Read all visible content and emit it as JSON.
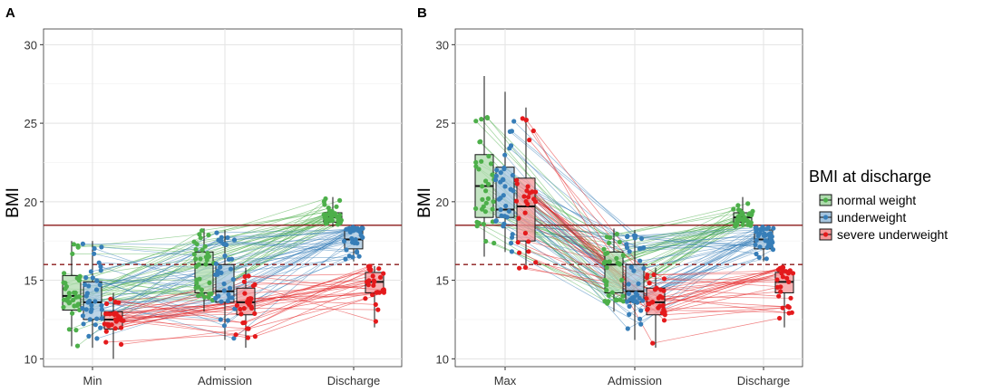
{
  "colors": {
    "normal weight": "#4daf4a",
    "underweight": "#377eb8",
    "severe underweight": "#e41a1c",
    "solid_line": "#8b1a1a",
    "dashed_line": "#8b1a1a"
  },
  "chart_data": [
    {
      "panel": "A",
      "type": "box",
      "title": "",
      "xlabel": "",
      "ylabel": "BMI",
      "ylim": [
        9.5,
        31
      ],
      "yticks": [
        10,
        15,
        20,
        25,
        30
      ],
      "categories": [
        "Min",
        "Admission",
        "Discharge"
      ],
      "reference_lines": [
        {
          "y": 18.5,
          "style": "solid"
        },
        {
          "y": 16,
          "style": "dashed"
        }
      ],
      "series": [
        {
          "name": "normal weight",
          "boxes": [
            {
              "category": "Min",
              "min": 10.8,
              "q1": 13.1,
              "median": 14.0,
              "q3": 15.3,
              "max": 17.5
            },
            {
              "category": "Admission",
              "min": 13.0,
              "q1": 14.2,
              "median": 16.0,
              "q3": 16.8,
              "max": 18.3
            },
            {
              "category": "Discharge",
              "min": 18.4,
              "q1": 18.7,
              "median": 19.0,
              "q3": 19.3,
              "max": 20.3
            }
          ]
        },
        {
          "name": "underweight",
          "boxes": [
            {
              "category": "Min",
              "min": 10.7,
              "q1": 12.5,
              "median": 13.6,
              "q3": 14.9,
              "max": 17.5
            },
            {
              "category": "Admission",
              "min": 11.2,
              "q1": 13.6,
              "median": 14.3,
              "q3": 16.0,
              "max": 18.2
            },
            {
              "category": "Discharge",
              "min": 16.2,
              "q1": 17.0,
              "median": 17.6,
              "q3": 18.2,
              "max": 18.4
            }
          ]
        },
        {
          "name": "severe underweight",
          "boxes": [
            {
              "category": "Min",
              "min": 10.0,
              "q1": 11.9,
              "median": 12.5,
              "q3": 13.0,
              "max": 14.2
            },
            {
              "category": "Admission",
              "min": 10.7,
              "q1": 12.8,
              "median": 13.6,
              "q3": 14.5,
              "max": 15.8
            },
            {
              "category": "Discharge",
              "min": 12.0,
              "q1": 14.2,
              "median": 14.9,
              "q3": 15.5,
              "max": 15.9
            }
          ]
        }
      ]
    },
    {
      "panel": "B",
      "type": "box",
      "title": "",
      "xlabel": "",
      "ylabel": "BMI",
      "ylim": [
        9.5,
        31
      ],
      "yticks": [
        10,
        15,
        20,
        25,
        30
      ],
      "categories": [
        "Max",
        "Admission",
        "Discharge"
      ],
      "reference_lines": [
        {
          "y": 18.5,
          "style": "solid"
        },
        {
          "y": 16,
          "style": "dashed"
        }
      ],
      "series": [
        {
          "name": "normal weight",
          "boxes": [
            {
              "category": "Max",
              "min": 16.5,
              "q1": 19.0,
              "median": 21.0,
              "q3": 23.0,
              "max": 28.0
            },
            {
              "category": "Admission",
              "min": 13.0,
              "q1": 14.2,
              "median": 16.0,
              "q3": 16.8,
              "max": 18.3
            },
            {
              "category": "Discharge",
              "min": 18.4,
              "q1": 18.7,
              "median": 19.0,
              "q3": 19.3,
              "max": 20.3
            }
          ]
        },
        {
          "name": "underweight",
          "boxes": [
            {
              "category": "Max",
              "min": 16.8,
              "q1": 19.0,
              "median": 19.5,
              "q3": 22.2,
              "max": 27.0
            },
            {
              "category": "Admission",
              "min": 11.2,
              "q1": 13.6,
              "median": 14.3,
              "q3": 16.0,
              "max": 18.2
            },
            {
              "category": "Discharge",
              "min": 16.2,
              "q1": 17.0,
              "median": 17.6,
              "q3": 18.2,
              "max": 18.4
            }
          ]
        },
        {
          "name": "severe underweight",
          "boxes": [
            {
              "category": "Max",
              "min": 15.7,
              "q1": 17.5,
              "median": 19.7,
              "q3": 21.5,
              "max": 26.0
            },
            {
              "category": "Admission",
              "min": 10.7,
              "q1": 12.8,
              "median": 13.6,
              "q3": 14.5,
              "max": 15.8
            },
            {
              "category": "Discharge",
              "min": 12.0,
              "q1": 14.2,
              "median": 14.9,
              "q3": 15.5,
              "max": 15.9
            }
          ]
        }
      ]
    }
  ],
  "legend": {
    "title": "BMI at discharge",
    "items": [
      "normal weight",
      "underweight",
      "severe underweight"
    ]
  }
}
